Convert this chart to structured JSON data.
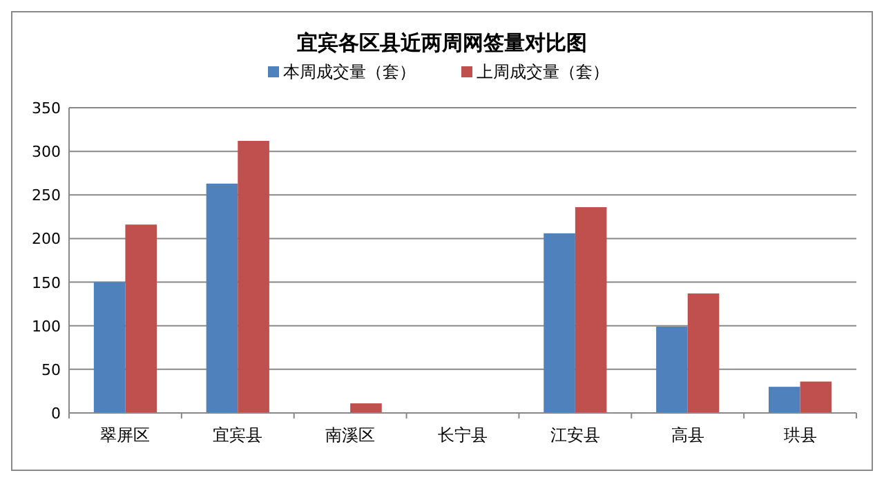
{
  "chart_data": {
    "type": "bar",
    "title": "宜宾各区县近两周网签量对比图",
    "categories": [
      "翠屏区",
      "宜宾县",
      "南溪区",
      "长宁县",
      "江安县",
      "高县",
      "珙县"
    ],
    "series": [
      {
        "name": "本周成交量（套）",
        "color": "#4f81bd",
        "values": [
          150,
          263,
          0,
          0,
          206,
          99,
          30
        ]
      },
      {
        "name": "上周成交量（套）",
        "color": "#c0504d",
        "values": [
          216,
          312,
          11,
          0,
          236,
          137,
          36
        ]
      }
    ],
    "ylim": [
      0,
      350
    ],
    "yticks": [
      0,
      50,
      100,
      150,
      200,
      250,
      300,
      350
    ],
    "grid": "y",
    "legend": "top"
  }
}
